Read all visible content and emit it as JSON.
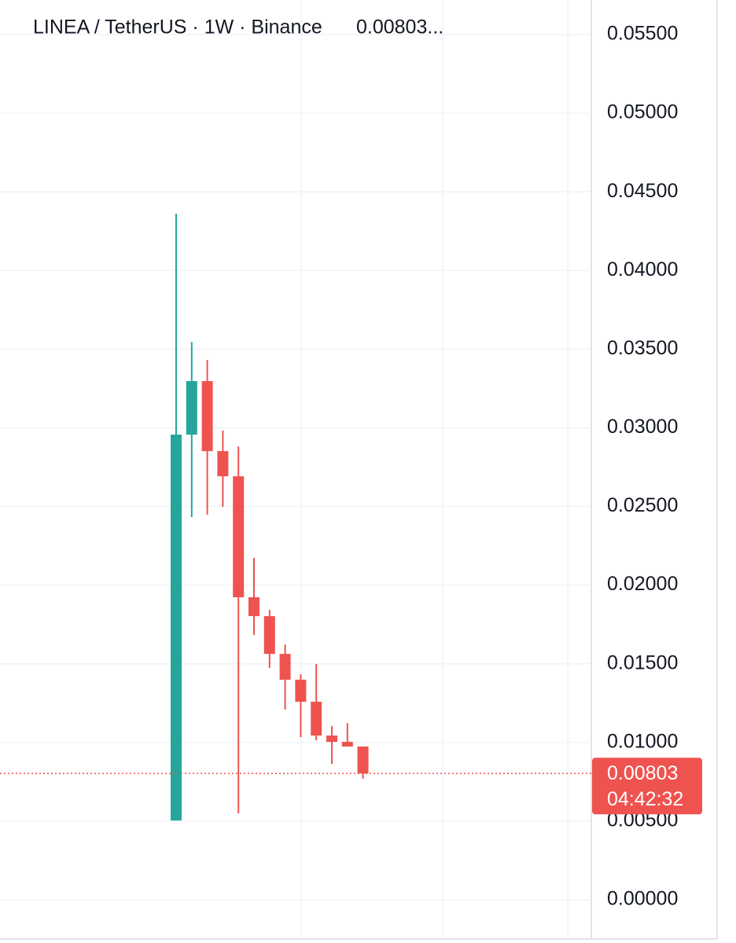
{
  "chart_data": {
    "type": "candlestick",
    "title": "LINEA / TetherUS · 1W · Binance",
    "title_price": "0.00803...",
    "open": [
      0.00504,
      0.02957,
      0.03297,
      0.02852,
      0.02692,
      0.01923,
      0.01803,
      0.01563,
      0.01399,
      0.01259,
      0.01044,
      0.01004,
      0.00974
    ],
    "high": [
      0.04361,
      0.03546,
      0.03432,
      0.02982,
      0.02882,
      0.02173,
      0.01843,
      0.01623,
      0.01434,
      0.01499,
      0.01104,
      0.01124,
      0.00974
    ],
    "low": [
      0.00504,
      0.02433,
      0.02448,
      0.02498,
      0.00549,
      0.01683,
      0.01474,
      0.01209,
      0.01034,
      0.01014,
      0.00864,
      0.00974,
      0.00769
    ],
    "close": [
      0.02957,
      0.03297,
      0.02852,
      0.02692,
      0.01923,
      0.01803,
      0.01563,
      0.01399,
      0.01259,
      0.01044,
      0.01004,
      0.00974,
      0.00803
    ],
    "up_color": "#26a69a",
    "down_color": "#ef5350",
    "ylim": [
      0,
      0.055
    ],
    "yticks": [
      {
        "value": 0,
        "label": "0.00000"
      },
      {
        "value": 0.005,
        "label": "0.00500"
      },
      {
        "value": 0.01,
        "label": "0.01000"
      },
      {
        "value": 0.015,
        "label": "0.01500"
      },
      {
        "value": 0.02,
        "label": "0.02000"
      },
      {
        "value": 0.025,
        "label": "0.02500"
      },
      {
        "value": 0.03,
        "label": "0.03000"
      },
      {
        "value": 0.035,
        "label": "0.03500"
      },
      {
        "value": 0.04,
        "label": "0.04000"
      },
      {
        "value": 0.045,
        "label": "0.04500"
      },
      {
        "value": 0.05,
        "label": "0.05000"
      },
      {
        "value": 0.055,
        "label": "0.05500"
      }
    ],
    "grid": true,
    "last_price": {
      "value": 0.00803,
      "label": "0.00803"
    },
    "countdown": "04:42:32"
  }
}
